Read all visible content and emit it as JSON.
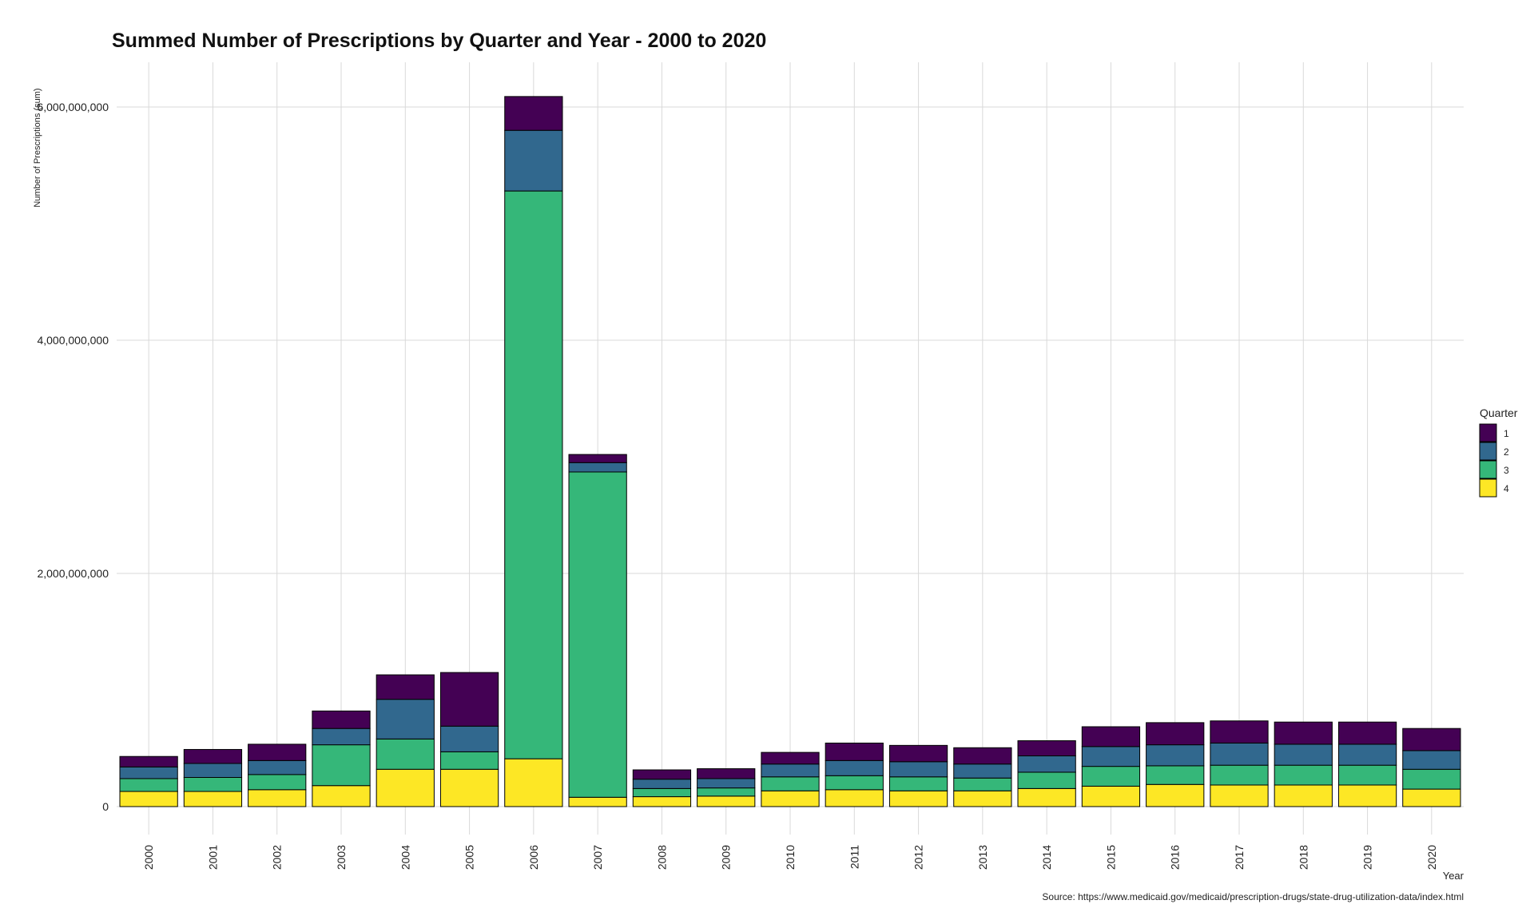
{
  "chart_data": {
    "type": "bar",
    "stacked": true,
    "title": "Summed Number of Prescriptions by Quarter and Year - 2000 to 2020",
    "xlabel": "Year",
    "ylabel": "Number of Prescriptions (sum)",
    "caption": "Source: https://www.medicaid.gov/medicaid/prescription-drugs/state-drug-utilization-data/index.html",
    "ylim": [
      0,
      6400000000
    ],
    "yticks": [
      {
        "value": 0,
        "label": "0"
      },
      {
        "value": 2000000000,
        "label": "2,000,000,000"
      },
      {
        "value": 4000000000,
        "label": "4,000,000,000"
      },
      {
        "value": 6000000000,
        "label": "6,000,000,000"
      }
    ],
    "categories": [
      "2000",
      "2001",
      "2002",
      "2003",
      "2004",
      "2005",
      "2006",
      "2007",
      "2008",
      "2009",
      "2010",
      "2011",
      "2012",
      "2013",
      "2014",
      "2015",
      "2016",
      "2017",
      "2018",
      "2019",
      "2020"
    ],
    "grid": true,
    "legend": {
      "title": "Quarter",
      "placement": "right"
    },
    "series": [
      {
        "name": "1",
        "color": "#440154",
        "values": [
          90000000,
          120000000,
          140000000,
          150000000,
          210000000,
          460000000,
          290000000,
          70000000,
          80000000,
          85000000,
          100000000,
          150000000,
          140000000,
          140000000,
          130000000,
          170000000,
          190000000,
          190000000,
          190000000,
          190000000,
          190000000
        ]
      },
      {
        "name": "2",
        "color": "#31688E",
        "values": [
          100000000,
          120000000,
          120000000,
          140000000,
          340000000,
          220000000,
          520000000,
          80000000,
          80000000,
          80000000,
          110000000,
          130000000,
          130000000,
          120000000,
          140000000,
          170000000,
          180000000,
          190000000,
          180000000,
          180000000,
          160000000
        ]
      },
      {
        "name": "3",
        "color": "#35B779",
        "values": [
          110000000,
          120000000,
          130000000,
          350000000,
          260000000,
          150000000,
          4870000000,
          2790000000,
          70000000,
          70000000,
          120000000,
          120000000,
          120000000,
          110000000,
          140000000,
          170000000,
          160000000,
          170000000,
          170000000,
          170000000,
          170000000
        ]
      },
      {
        "name": "4",
        "color": "#FDE725",
        "values": [
          130000000,
          130000000,
          145000000,
          180000000,
          320000000,
          320000000,
          410000000,
          80000000,
          85000000,
          90000000,
          135000000,
          145000000,
          135000000,
          135000000,
          155000000,
          175000000,
          190000000,
          185000000,
          185000000,
          185000000,
          150000000
        ]
      }
    ]
  }
}
